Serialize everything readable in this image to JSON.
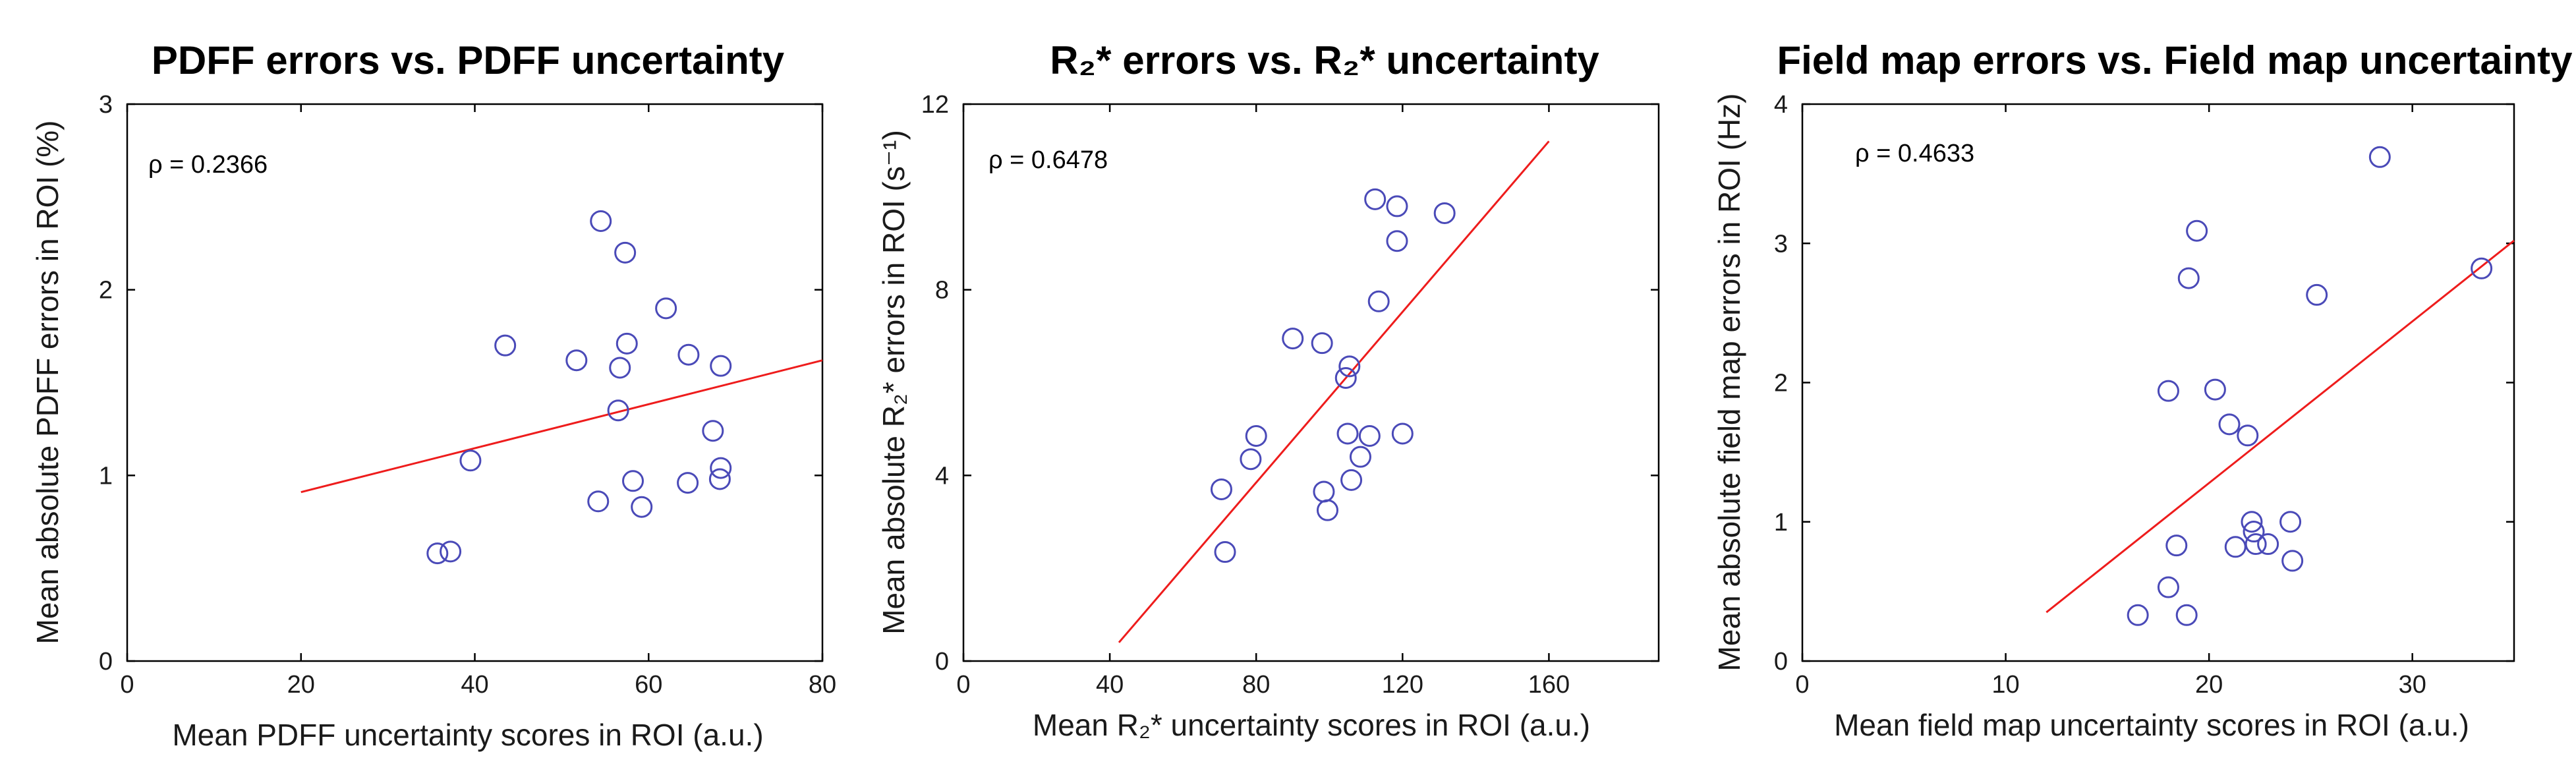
{
  "chart_data": [
    {
      "type": "scatter",
      "title": "PDFF errors vs. PDFF uncertainty",
      "xlabel": "Mean PDFF uncertainty scores in ROI (a.u.)",
      "ylabel": "Mean absolute PDFF errors in ROI (%)",
      "xlim": [
        0,
        80
      ],
      "ylim": [
        0,
        3
      ],
      "xticks": [
        "0",
        "20",
        "40",
        "60",
        "80"
      ],
      "yticks": [
        "0",
        "1",
        "2",
        "3"
      ],
      "annotation": "ρ = 0.2366",
      "grid": false,
      "series": [
        {
          "points": [
            {
              "x": 35.7,
              "y": 0.58
            },
            {
              "x": 37.2,
              "y": 0.59
            },
            {
              "x": 39.5,
              "y": 1.08
            },
            {
              "x": 43.5,
              "y": 1.7
            },
            {
              "x": 51.7,
              "y": 1.62
            },
            {
              "x": 54.2,
              "y": 0.86
            },
            {
              "x": 54.5,
              "y": 2.37
            },
            {
              "x": 56.5,
              "y": 1.35
            },
            {
              "x": 56.7,
              "y": 1.58
            },
            {
              "x": 57.3,
              "y": 2.2
            },
            {
              "x": 57.5,
              "y": 1.71
            },
            {
              "x": 58.2,
              "y": 0.97
            },
            {
              "x": 59.2,
              "y": 0.83
            },
            {
              "x": 62.0,
              "y": 1.9
            },
            {
              "x": 64.5,
              "y": 0.96
            },
            {
              "x": 64.6,
              "y": 1.65
            },
            {
              "x": 67.4,
              "y": 1.24
            },
            {
              "x": 68.2,
              "y": 0.98
            },
            {
              "x": 68.3,
              "y": 1.04
            },
            {
              "x": 68.3,
              "y": 1.59
            }
          ]
        }
      ],
      "fit_line": {
        "x": [
          20,
          80
        ],
        "y": [
          0.91,
          1.62
        ]
      }
    },
    {
      "type": "scatter",
      "title": "R₂* errors vs. R₂* uncertainty",
      "xlabel": "Mean R₂* uncertainty scores in ROI (a.u.)",
      "ylabel": "Mean absolute R₂* errors in ROI (s⁻¹)",
      "xlim": [
        0,
        190
      ],
      "ylim": [
        0,
        12
      ],
      "xticks": [
        "0",
        "40",
        "80",
        "120",
        "160"
      ],
      "yticks": [
        "0",
        "4",
        "8",
        "12"
      ],
      "annotation": "ρ = 0.6478",
      "grid": false,
      "series": [
        {
          "points": [
            {
              "x": 70.5,
              "y": 3.7
            },
            {
              "x": 71.5,
              "y": 2.35
            },
            {
              "x": 78.5,
              "y": 4.35
            },
            {
              "x": 80.0,
              "y": 4.85
            },
            {
              "x": 90.0,
              "y": 6.95
            },
            {
              "x": 98.0,
              "y": 6.85
            },
            {
              "x": 98.5,
              "y": 3.65
            },
            {
              "x": 99.5,
              "y": 3.25
            },
            {
              "x": 104.5,
              "y": 6.1
            },
            {
              "x": 105.0,
              "y": 4.9
            },
            {
              "x": 105.5,
              "y": 6.35
            },
            {
              "x": 106.0,
              "y": 3.9
            },
            {
              "x": 108.5,
              "y": 4.4
            },
            {
              "x": 111.0,
              "y": 4.85
            },
            {
              "x": 112.5,
              "y": 9.95
            },
            {
              "x": 113.5,
              "y": 7.75
            },
            {
              "x": 118.5,
              "y": 9.05
            },
            {
              "x": 118.5,
              "y": 9.8
            },
            {
              "x": 120.0,
              "y": 4.9
            },
            {
              "x": 131.5,
              "y": 9.65
            }
          ]
        }
      ],
      "fit_line": {
        "x": [
          42.5,
          160
        ],
        "y": [
          0.4,
          11.2
        ]
      }
    },
    {
      "type": "scatter",
      "title": "Field map errors vs. Field map uncertainty",
      "xlabel": "Mean field map uncertainty scores in ROI (a.u.)",
      "ylabel": "Mean absolute field map errors in ROI (Hz)",
      "xlim": [
        0,
        35
      ],
      "ylim": [
        0,
        4
      ],
      "xticks": [
        "0",
        "10",
        "20",
        "30"
      ],
      "yticks": [
        "0",
        "1",
        "2",
        "3",
        "4"
      ],
      "annotation": "ρ = 0.4633",
      "grid": false,
      "series": [
        {
          "points": [
            {
              "x": 16.5,
              "y": 0.33
            },
            {
              "x": 18.0,
              "y": 0.53
            },
            {
              "x": 18.0,
              "y": 1.94
            },
            {
              "x": 18.4,
              "y": 0.83
            },
            {
              "x": 18.9,
              "y": 0.33
            },
            {
              "x": 19.0,
              "y": 2.75
            },
            {
              "x": 19.4,
              "y": 3.09
            },
            {
              "x": 20.3,
              "y": 1.95
            },
            {
              "x": 21.0,
              "y": 1.7
            },
            {
              "x": 21.3,
              "y": 0.82
            },
            {
              "x": 21.9,
              "y": 1.62
            },
            {
              "x": 22.1,
              "y": 1.0
            },
            {
              "x": 22.2,
              "y": 0.93
            },
            {
              "x": 22.3,
              "y": 0.84
            },
            {
              "x": 22.9,
              "y": 0.84
            },
            {
              "x": 24.0,
              "y": 1.0
            },
            {
              "x": 24.1,
              "y": 0.72
            },
            {
              "x": 25.3,
              "y": 2.63
            },
            {
              "x": 28.4,
              "y": 3.62
            },
            {
              "x": 33.4,
              "y": 2.82
            }
          ]
        }
      ],
      "fit_line": {
        "x": [
          12,
          35
        ],
        "y": [
          0.35,
          3.02
        ]
      }
    }
  ]
}
